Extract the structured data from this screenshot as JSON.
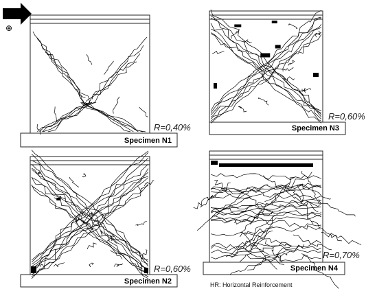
{
  "panels": [
    {
      "name": "Specimen N1",
      "ratio": "R=0,40%",
      "pattern": "x-sparse"
    },
    {
      "name": "Specimen N3",
      "ratio": "R=0,60%",
      "pattern": "x-heavy"
    },
    {
      "name": "Specimen N2",
      "ratio": "R=0,60%",
      "pattern": "x-dense"
    },
    {
      "name": "Specimen N4",
      "ratio": "R=0,70%",
      "pattern": "mesh"
    }
  ],
  "load_symbol": "⊕",
  "legend_note": "HR:  Horizontal Reinforcement",
  "colors": {
    "ink": "#000000",
    "frame": "#222222",
    "paper": "#ffffff"
  },
  "icons": [
    "load-arrow-icon",
    "plus-circle-icon"
  ]
}
